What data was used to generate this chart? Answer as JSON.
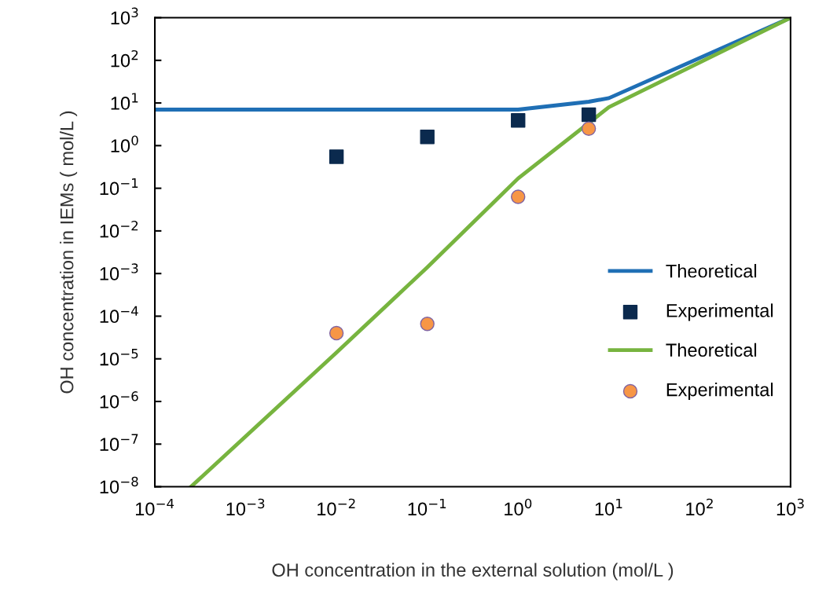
{
  "chart_data": {
    "type": "line",
    "xlabel": "OH concentration in the external solution (mol/L )",
    "ylabel": "OH concentration in IEMs ( mol/L )",
    "log": "xy",
    "xlim": [
      0.0001,
      1000
    ],
    "ylim": [
      1e-08,
      1000
    ],
    "xticks": [
      {
        "value": 0.0001,
        "label": "10$^{−4}$"
      },
      {
        "value": 0.001,
        "label": "10$^{−3}$"
      },
      {
        "value": 0.01,
        "label": "10$^{−2}$"
      },
      {
        "value": 0.1,
        "label": "10$^{−1}$"
      },
      {
        "value": 1,
        "label": "10$^{0}$"
      },
      {
        "value": 10,
        "label": "10$^{1}$"
      },
      {
        "value": 100,
        "label": "10$^{2}$"
      },
      {
        "value": 1000,
        "label": "10$^{3}$"
      }
    ],
    "yticks": [
      {
        "value": 1e-08,
        "label": "10$^{−8}$"
      },
      {
        "value": 1e-07,
        "label": "10$^{−7}$"
      },
      {
        "value": 1e-06,
        "label": "10$^{−6}$"
      },
      {
        "value": 1e-05,
        "label": "10$^{−5}$"
      },
      {
        "value": 0.0001,
        "label": "10$^{−4}$"
      },
      {
        "value": 0.001,
        "label": "10$^{−3}$"
      },
      {
        "value": 0.01,
        "label": "10$^{−2}$"
      },
      {
        "value": 0.1,
        "label": "10$^{−1}$"
      },
      {
        "value": 1,
        "label": "10$^{0}$"
      },
      {
        "value": 10,
        "label": "10$^{1}$"
      },
      {
        "value": 100,
        "label": "10$^{2}$"
      },
      {
        "value": 1000,
        "label": "10$^{3}$"
      }
    ],
    "legend": "right",
    "series": [
      {
        "name": "Theoretical",
        "line_style": "solid",
        "color": "#1f6fb5",
        "x": [
          0.0001,
          1,
          6,
          10,
          1000
        ],
        "values": [
          7,
          7,
          10.7,
          13,
          1000
        ]
      },
      {
        "name": "Experimental",
        "type": "scatter",
        "marker": "square",
        "color": "#0b2a4e",
        "x": [
          0.01,
          0.1,
          1,
          6
        ],
        "values": [
          0.55,
          1.6,
          3.9,
          5.3
        ]
      },
      {
        "name": "Theoretical",
        "line_style": "solid",
        "color": "#77b43f",
        "x": [
          0.00025,
          0.01,
          0.1,
          1,
          10,
          1000
        ],
        "values": [
          1e-08,
          1.4e-05,
          0.0014,
          0.17,
          8,
          1000
        ]
      },
      {
        "name": "Experimental",
        "type": "scatter",
        "marker": "circle",
        "color": "#f79646",
        "x": [
          0.01,
          0.1,
          1,
          6
        ],
        "values": [
          4e-05,
          6.6e-05,
          0.063,
          2.5
        ]
      }
    ]
  }
}
